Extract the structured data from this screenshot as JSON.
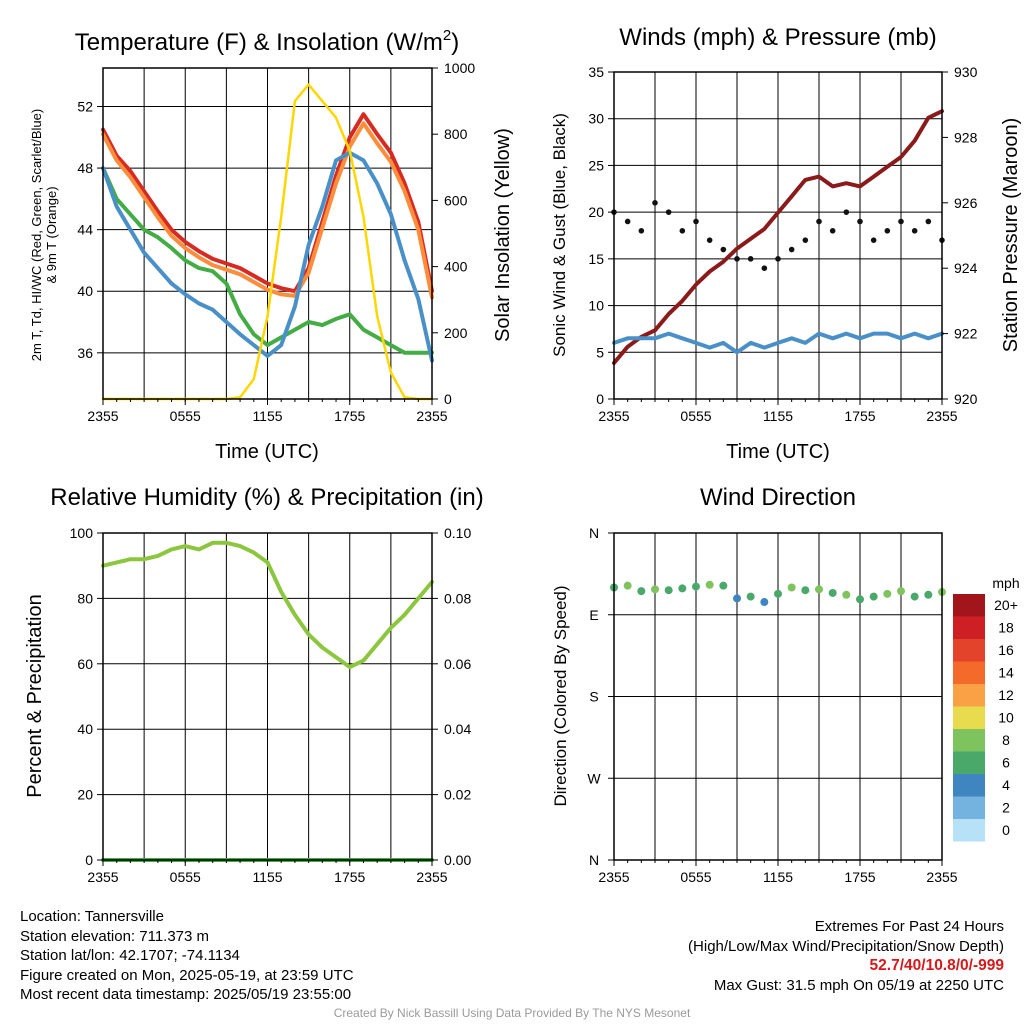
{
  "chart_data": [
    {
      "type": "line",
      "title": "Temperature (F) & Insolation (W/m²)",
      "title_main": "Temperature (F) & Insolation (W/m",
      "title_sup": "2",
      "title_end": ")",
      "xlabel": "Time (UTC)",
      "ylabel_left_line1": "2m T, Td, HI/WC (Red, Green, Scarlet/Blue)",
      "ylabel_left_line2": "& 9m T (Orange)",
      "ylabel_right": "Solar Insolation (Yellow)",
      "x_ticks": [
        "2355",
        "0555",
        "1155",
        "1755",
        "2355"
      ],
      "x": [
        0,
        1,
        2,
        3,
        4,
        5,
        6,
        7,
        8,
        9,
        10,
        11,
        12,
        13,
        14,
        15,
        16,
        17,
        18,
        19,
        20,
        21,
        22,
        23,
        24
      ],
      "ylim": [
        33,
        54.5
      ],
      "y_ticks": [
        36,
        40,
        44,
        48,
        52
      ],
      "y2lim": [
        0,
        1000
      ],
      "y2_ticks": [
        0,
        200,
        400,
        600,
        800,
        1000
      ],
      "grid": true,
      "series": [
        {
          "color": "#d62b22",
          "axis": "left",
          "values": [
            50.5,
            48.8,
            47.8,
            46.5,
            45.2,
            44.0,
            43.2,
            42.6,
            42.1,
            41.8,
            41.5,
            41.0,
            40.5,
            40.2,
            40.0,
            41.5,
            44.5,
            47.5,
            50.0,
            51.5,
            50.2,
            49.0,
            47.0,
            44.5,
            40.0
          ]
        },
        {
          "color": "#fc8d3c",
          "axis": "left",
          "values": [
            50.2,
            48.5,
            47.4,
            46.1,
            44.8,
            43.6,
            42.8,
            42.2,
            41.7,
            41.4,
            41.1,
            40.6,
            40.1,
            39.8,
            39.7,
            41.2,
            44.1,
            47.0,
            49.4,
            50.9,
            49.6,
            48.4,
            46.5,
            44.0,
            39.6
          ]
        },
        {
          "color": "#43ac44",
          "axis": "left",
          "values": [
            48.0,
            46.0,
            45.0,
            44.0,
            43.5,
            42.8,
            42.0,
            41.5,
            41.3,
            40.5,
            38.5,
            37.2,
            36.5,
            37.0,
            37.5,
            38.0,
            37.8,
            38.2,
            38.5,
            37.5,
            37.0,
            36.5,
            36.0,
            36.0,
            36.0
          ]
        },
        {
          "color": "#4a90c8",
          "axis": "left",
          "values": [
            48.0,
            45.5,
            44.0,
            42.5,
            41.5,
            40.5,
            39.8,
            39.2,
            38.8,
            38.0,
            37.2,
            36.5,
            35.8,
            36.5,
            39.0,
            43.0,
            45.5,
            48.5,
            49.0,
            48.5,
            47.0,
            45.0,
            42.0,
            39.5,
            35.5
          ]
        },
        {
          "color": "#ffd700",
          "axis": "right",
          "values": [
            0,
            0,
            0,
            0,
            0,
            0,
            0,
            0,
            0,
            0,
            5,
            60,
            250,
            550,
            900,
            950,
            900,
            850,
            750,
            550,
            250,
            80,
            5,
            0,
            0
          ]
        }
      ]
    },
    {
      "type": "line",
      "title": "Winds (mph) & Pressure (mb)",
      "xlabel": "Time (UTC)",
      "ylabel_left": "Sonic Wind & Gust (Blue, Black)",
      "ylabel_right": "Station Pressure (Maroon)",
      "x_ticks": [
        "2355",
        "0555",
        "1155",
        "1755",
        "2355"
      ],
      "x": [
        0,
        1,
        2,
        3,
        4,
        5,
        6,
        7,
        8,
        9,
        10,
        11,
        12,
        13,
        14,
        15,
        16,
        17,
        18,
        19,
        20,
        21,
        22,
        23,
        24
      ],
      "ylim": [
        0,
        35
      ],
      "y_ticks": [
        0,
        5,
        10,
        15,
        20,
        25,
        30,
        35
      ],
      "y2lim": [
        920,
        930
      ],
      "y2_ticks": [
        920,
        922,
        924,
        926,
        928,
        930
      ],
      "grid": true,
      "series": [
        {
          "color": "#8b1a1a",
          "axis": "right",
          "values": [
            921.1,
            921.6,
            921.9,
            922.1,
            922.6,
            923.0,
            923.5,
            923.9,
            924.2,
            924.6,
            924.9,
            925.2,
            925.7,
            926.2,
            926.7,
            926.8,
            926.5,
            926.6,
            926.5,
            926.8,
            927.1,
            927.4,
            927.9,
            928.6,
            928.8
          ]
        },
        {
          "color": "#4a90c8",
          "axis": "left",
          "values": [
            6,
            6.5,
            6.5,
            6.5,
            7,
            6.5,
            6,
            5.5,
            6,
            5,
            6,
            5.5,
            6,
            6.5,
            6,
            7,
            6.5,
            7,
            6.5,
            7,
            7,
            6.5,
            7,
            6.5,
            7
          ]
        },
        {
          "color": "#111111",
          "axis": "left",
          "style": "points",
          "values": [
            20,
            19,
            18,
            21,
            20,
            18,
            19,
            17,
            16,
            15,
            15,
            14,
            15,
            16,
            17,
            19,
            18,
            20,
            19,
            17,
            18,
            19,
            18,
            19,
            17
          ]
        }
      ]
    },
    {
      "type": "line",
      "title": "Relative Humidity (%) & Precipitation (in)",
      "ylabel_left": "Percent & Precipitation",
      "x_ticks": [
        "2355",
        "0555",
        "1155",
        "1755",
        "2355"
      ],
      "x": [
        0,
        1,
        2,
        3,
        4,
        5,
        6,
        7,
        8,
        9,
        10,
        11,
        12,
        13,
        14,
        15,
        16,
        17,
        18,
        19,
        20,
        21,
        22,
        23,
        24
      ],
      "ylim": [
        0,
        100
      ],
      "y_ticks": [
        0,
        20,
        40,
        60,
        80,
        100
      ],
      "y2lim": [
        0,
        0.1
      ],
      "y2_ticks": [
        "0.00",
        "0.02",
        "0.04",
        "0.06",
        "0.08",
        "0.10"
      ],
      "grid": true,
      "series": [
        {
          "color": "#8cc63f",
          "axis": "left",
          "values": [
            90,
            91,
            92,
            92,
            93,
            95,
            96,
            95,
            97,
            97,
            96,
            94,
            91,
            82,
            75,
            69,
            65,
            62,
            59,
            61,
            66,
            71,
            75,
            80,
            85
          ]
        },
        {
          "color": "#43ac44",
          "axis": "right",
          "values": [
            0,
            0,
            0,
            0,
            0,
            0,
            0,
            0,
            0,
            0,
            0,
            0,
            0,
            0,
            0,
            0,
            0,
            0,
            0,
            0,
            0,
            0,
            0,
            0,
            0
          ]
        }
      ]
    },
    {
      "type": "scatter",
      "title": "Wind Direction",
      "ylabel_left": "Direction (Colored By Speed)",
      "x_ticks": [
        "2355",
        "0555",
        "1155",
        "1755",
        "2355"
      ],
      "y_ticks": [
        "N",
        "W",
        "S",
        "E",
        "N"
      ],
      "ylim": [
        0,
        360
      ],
      "grid": true,
      "colorbar_title": "mph",
      "colorbar_labels": [
        "20+",
        "18",
        "16",
        "14",
        "12",
        "10",
        "8",
        "6",
        "4",
        "2",
        "0"
      ],
      "colorbar_colors": [
        "#a1151b",
        "#ce1f24",
        "#e2432a",
        "#f36a2a",
        "#fba145",
        "#e8dc4e",
        "#7fc35e",
        "#4aa86a",
        "#3f86c1",
        "#74b2e0",
        "#b7e1f7"
      ],
      "series": [
        {
          "name": "direction",
          "x": [
            0,
            1,
            2,
            3,
            4,
            5,
            6,
            7,
            8,
            9,
            10,
            11,
            12,
            13,
            14,
            15,
            16,
            17,
            18,
            19,
            20,
            21,
            22,
            23,
            24
          ],
          "values": [
            300,
            302,
            296,
            298,
            297,
            299,
            301,
            303,
            302,
            288,
            290,
            284,
            293,
            300,
            297,
            298,
            294,
            292,
            287,
            290,
            293,
            296,
            290,
            292,
            295
          ],
          "speeds": [
            6,
            7,
            6,
            8,
            6,
            5,
            6,
            7,
            6,
            4,
            5,
            3,
            6,
            7,
            6,
            8,
            6,
            7,
            5,
            6,
            7,
            8,
            6,
            6,
            7
          ]
        }
      ]
    }
  ],
  "info_left": {
    "location": "Location: Tannersville",
    "elevation": "Station elevation: 711.373 m",
    "latlon": "Station lat/lon: 42.1707; -74.1134",
    "created": "Figure created on Mon, 2025-05-19, at 23:59 UTC",
    "recent": "Most recent data timestamp: 2025/05/19 23:55:00"
  },
  "info_right": {
    "line1": "Extremes For Past 24 Hours",
    "line2": "(High/Low/Max Wind/Precipitation/Snow Depth)",
    "values": "52.7/40/10.8/0/-999",
    "gust": "Max Gust: 31.5 mph On 05/19 at 2250 UTC"
  },
  "credit": "Created By Nick Bassill Using Data Provided By The NYS Mesonet"
}
